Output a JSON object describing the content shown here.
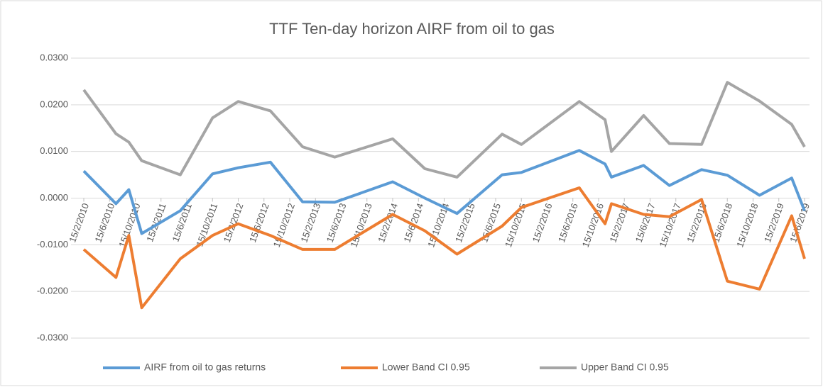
{
  "chart_data": {
    "type": "line",
    "title": "TTF Ten-day horizon AIRF from oil to gas",
    "x": [
      "15/2/2010",
      "15/7/2010",
      "15/9/2010",
      "15/11/2010",
      "15/5/2011",
      "15/10/2011",
      "15/2/2012",
      "15/7/2012",
      "15/12/2012",
      "15/5/2013",
      "15/2/2014",
      "15/7/2014",
      "15/12/2014",
      "15/7/2015",
      "15/10/2015",
      "15/7/2016",
      "15/11/2016",
      "15/12/2016",
      "15/5/2017",
      "15/9/2017",
      "15/2/2018",
      "15/6/2018",
      "15/11/2018",
      "15/4/2019",
      "15/6/2019"
    ],
    "series": [
      {
        "name": "AIRF from oil to gas returns",
        "color": "#5b9bd5",
        "values": [
          0.0058,
          -0.0012,
          0.0018,
          -0.0076,
          -0.0027,
          0.0052,
          0.0065,
          0.0077,
          -0.0008,
          -0.0009,
          0.0035,
          0.0,
          -0.0033,
          0.005,
          0.0055,
          0.0102,
          0.0073,
          0.0045,
          0.007,
          0.0027,
          0.0061,
          0.0049,
          0.0006,
          0.0043,
          -0.0027
        ]
      },
      {
        "name": "Lower Band CI 0.95",
        "color": "#ed7d31",
        "values": [
          -0.011,
          -0.017,
          -0.008,
          -0.0235,
          -0.013,
          -0.008,
          -0.0055,
          -0.008,
          -0.011,
          -0.011,
          -0.0035,
          -0.007,
          -0.012,
          -0.006,
          -0.002,
          0.0022,
          -0.0055,
          -0.0012,
          -0.0035,
          -0.004,
          -0.0003,
          -0.0178,
          -0.0195,
          -0.0038,
          -0.013
        ]
      },
      {
        "name": "Upper Band CI 0.95",
        "color": "#a5a5a5",
        "values": [
          0.0232,
          0.0138,
          0.012,
          0.008,
          0.005,
          0.0172,
          0.0207,
          0.0187,
          0.011,
          0.0088,
          0.0127,
          0.0063,
          0.0045,
          0.0137,
          0.0115,
          0.0207,
          0.0168,
          0.01,
          0.0177,
          0.0117,
          0.0115,
          0.0248,
          0.0208,
          0.0158,
          0.011
        ]
      }
    ],
    "xlim": [
      "15/2/2010",
      "15/6/2019"
    ],
    "xticks": [
      "15/2/2010",
      "15/6/2010",
      "15/10/2010",
      "15/2/2011",
      "15/6/2011",
      "15/10/2011",
      "15/2/2012",
      "15/6/2012",
      "15/10/2012",
      "15/2/2013",
      "15/6/2013",
      "15/10/2013",
      "15/2/2014",
      "15/6/2014",
      "15/10/2014",
      "15/2/2015",
      "15/6/2015",
      "15/10/2015",
      "15/2/2016",
      "15/6/2016",
      "15/10/2016",
      "15/2/2017",
      "15/6/2017",
      "15/10/2017",
      "15/2/2018",
      "15/6/2018",
      "15/10/2018",
      "15/2/2019",
      "15/6/2019"
    ],
    "ylim": [
      -0.03,
      0.03
    ],
    "yticks": [
      {
        "value": 0.03,
        "label": "0.0300"
      },
      {
        "value": 0.02,
        "label": "0.0200"
      },
      {
        "value": 0.01,
        "label": "0.0100"
      },
      {
        "value": 0,
        "label": "0.0000"
      },
      {
        "value": -0.01,
        "label": "-0.0100"
      },
      {
        "value": -0.02,
        "label": "-0.0200"
      },
      {
        "value": -0.03,
        "label": "-0.0300"
      }
    ],
    "grid": true,
    "legend": "bottom"
  }
}
